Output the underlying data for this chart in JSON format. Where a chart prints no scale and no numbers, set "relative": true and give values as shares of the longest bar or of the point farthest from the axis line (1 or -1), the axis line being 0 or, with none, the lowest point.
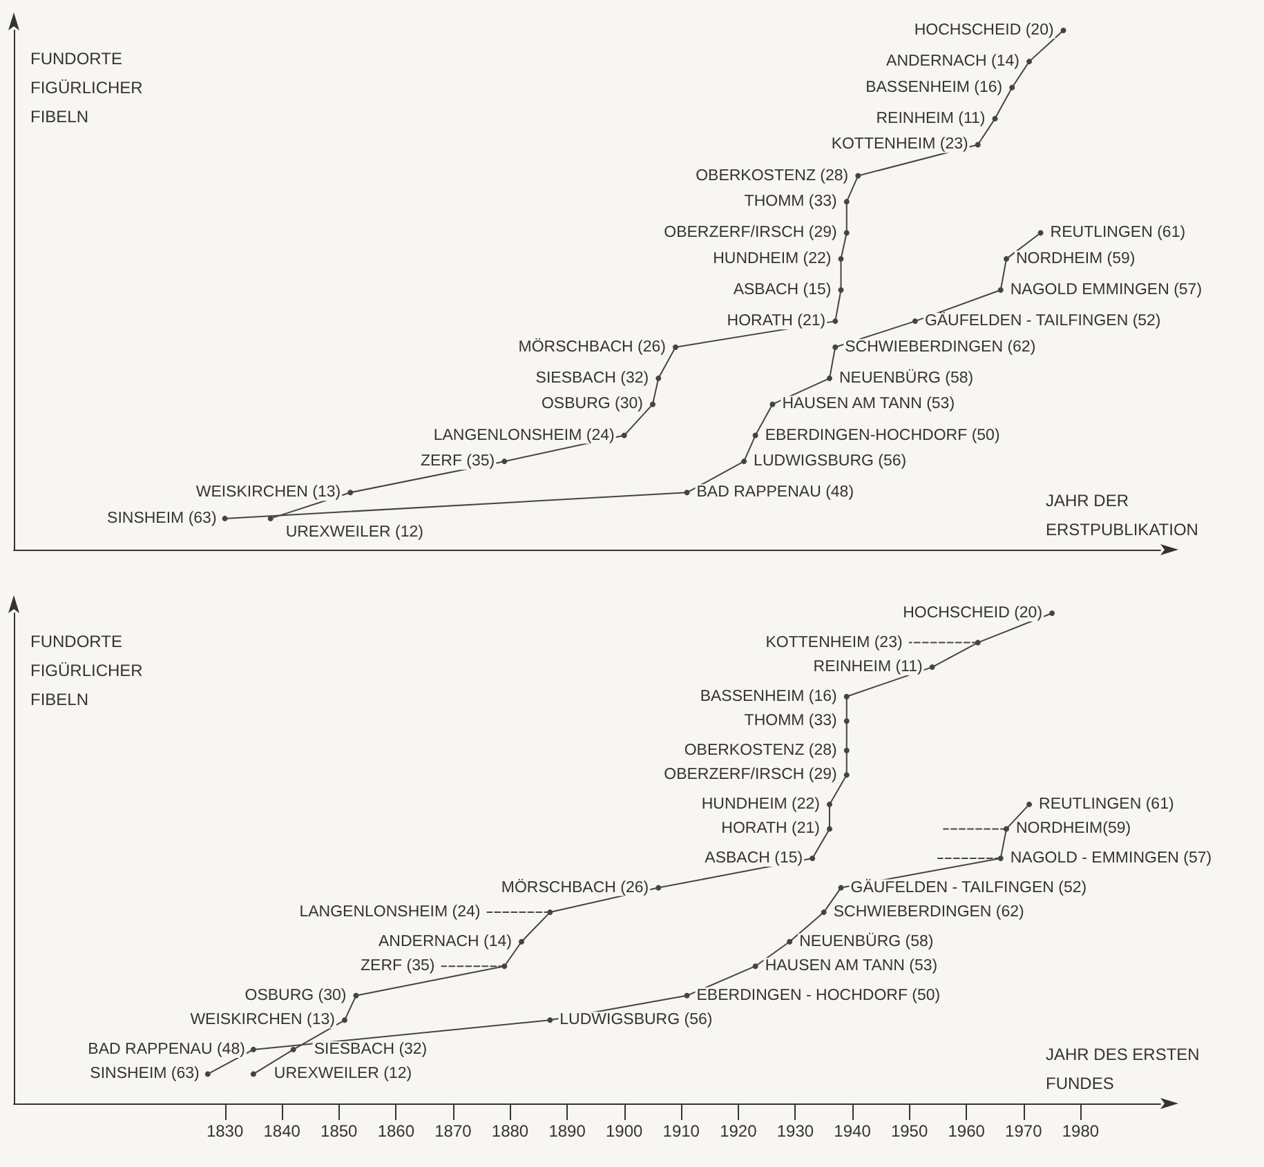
{
  "chart_data": [
    {
      "type": "line",
      "relative": true,
      "xlabel": "JAHR DER ERSTPUBLIKATION",
      "ylabel": "FUNDORTE FIGÜRLICHER FIBELN",
      "xlim": [
        1793,
        1994
      ],
      "tick_labels": false,
      "grid": false,
      "marker": "circle",
      "line_style": "solid",
      "series": [
        {
          "color": "#444444",
          "x": [
            1838,
            1852,
            1879,
            1900,
            1905,
            1906,
            1909,
            1937,
            1938,
            1938,
            1939,
            1939,
            1941,
            1962,
            1965,
            1968,
            1971,
            1977
          ],
          "values": [
            0.06,
            0.11,
            0.17,
            0.22,
            0.28,
            0.33,
            0.39,
            0.44,
            0.5,
            0.56,
            0.61,
            0.67,
            0.72,
            0.78,
            0.83,
            0.89,
            0.94,
            1
          ]
        },
        {
          "color": "#444444",
          "x": [
            1830,
            1911,
            1921,
            1923,
            1926,
            1936,
            1937,
            1951,
            1966,
            1967,
            1973
          ],
          "values": [
            0.06,
            0.11,
            0.17,
            0.22,
            0.28,
            0.33,
            0.39,
            0.44,
            0.5,
            0.56,
            0.61
          ]
        }
      ],
      "annotations": [
        {
          "text": "UREXWEILER (12)",
          "x": 1838,
          "y": 0.06
        },
        {
          "text": "WEISKIRCHEN (13)",
          "x": 1852,
          "y": 0.11
        },
        {
          "text": "ZERF (35)",
          "x": 1879,
          "y": 0.17
        },
        {
          "text": "LANGENLONSHEIM (24)",
          "x": 1900,
          "y": 0.22
        },
        {
          "text": "OSBURG (30)",
          "x": 1905,
          "y": 0.28
        },
        {
          "text": "SIESBACH (32)",
          "x": 1906,
          "y": 0.33
        },
        {
          "text": "MÖRSCHBACH (26)",
          "x": 1909,
          "y": 0.39
        },
        {
          "text": "HORATH (21)",
          "x": 1937,
          "y": 0.44
        },
        {
          "text": "ASBACH (15)",
          "x": 1938,
          "y": 0.5
        },
        {
          "text": "HUNDHEIM (22)",
          "x": 1938,
          "y": 0.56
        },
        {
          "text": "OBERZERF/IRSCH (29)",
          "x": 1939,
          "y": 0.61
        },
        {
          "text": "THOMM (33)",
          "x": 1939,
          "y": 0.67
        },
        {
          "text": "OBERKOSTENZ (28)",
          "x": 1941,
          "y": 0.72
        },
        {
          "text": "KOTTENHEIM (23)",
          "x": 1962,
          "y": 0.78
        },
        {
          "text": "REINHEIM (11)",
          "x": 1965,
          "y": 0.83
        },
        {
          "text": "BASSENHEIM (16)",
          "x": 1968,
          "y": 0.89
        },
        {
          "text": "ANDERNACH (14)",
          "x": 1971,
          "y": 0.94
        },
        {
          "text": "HOCHSCHEID (20)",
          "x": 1977,
          "y": 1
        },
        {
          "text": "SINSHEIM (63)",
          "x": 1830,
          "y": 0.06
        },
        {
          "text": "BAD RAPPENAU (48)",
          "x": 1911,
          "y": 0.11
        },
        {
          "text": "LUDWIGSBURG (56)",
          "x": 1921,
          "y": 0.17
        },
        {
          "text": "EBERDINGEN-HOCHDORF (50)",
          "x": 1923,
          "y": 0.22
        },
        {
          "text": "HAUSEN AM TANN (53)",
          "x": 1926,
          "y": 0.28
        },
        {
          "text": "NEUENBÜRG (58)",
          "x": 1936,
          "y": 0.33
        },
        {
          "text": "SCHWIEBERDINGEN (62)",
          "x": 1937,
          "y": 0.39
        },
        {
          "text": "GÄUFELDEN - TAILFINGEN (52)",
          "x": 1951,
          "y": 0.44
        },
        {
          "text": "NAGOLD EMMINGEN (57)",
          "x": 1966,
          "y": 0.5
        },
        {
          "text": "NORDHEIM (59)",
          "x": 1967,
          "y": 0.56
        },
        {
          "text": "REUTLINGEN (61)",
          "x": 1973,
          "y": 0.61
        }
      ]
    },
    {
      "type": "line",
      "relative": true,
      "xlabel": "JAHR DES ERSTEN FUNDES",
      "ylabel": "FUNDORTE FIGÜRLICHER FIBELN",
      "xlim": [
        1793,
        1994
      ],
      "xticks": [
        1830,
        1840,
        1850,
        1860,
        1870,
        1880,
        1890,
        1900,
        1910,
        1920,
        1930,
        1940,
        1950,
        1960,
        1970,
        1980
      ],
      "tick_labels": "x",
      "grid": false,
      "marker": "circle",
      "line_style": "solid",
      "series": [
        {
          "color": "#444444",
          "x": [
            1835,
            1842,
            1851,
            1853,
            1879,
            1882,
            1887,
            1906,
            1933,
            1936,
            1936,
            1939,
            1939,
            1939,
            1939,
            1954,
            1962,
            1975
          ],
          "values": [
            0.06,
            0.11,
            0.17,
            0.22,
            0.28,
            0.33,
            0.39,
            0.44,
            0.5,
            0.56,
            0.61,
            0.67,
            0.72,
            0.78,
            0.83,
            0.89,
            0.94,
            1
          ]
        },
        {
          "color": "#444444",
          "x": [
            1827,
            1835,
            1887,
            1911,
            1923,
            1929,
            1935,
            1938,
            1966,
            1967,
            1971
          ],
          "values": [
            0.06,
            0.11,
            0.17,
            0.22,
            0.28,
            0.33,
            0.39,
            0.44,
            0.5,
            0.56,
            0.61
          ]
        },
        {
          "color": "#444444",
          "line_style": "dashed",
          "marker": "none",
          "x": [
            1887,
            1876
          ],
          "values": [
            0.39,
            0.39
          ]
        },
        {
          "color": "#444444",
          "line_style": "dashed",
          "marker": "none",
          "x": [
            1879,
            1868
          ],
          "values": [
            0.28,
            0.28
          ]
        },
        {
          "color": "#444444",
          "line_style": "dashed",
          "marker": "none",
          "x": [
            1962,
            1950
          ],
          "values": [
            0.94,
            0.94
          ]
        },
        {
          "color": "#444444",
          "line_style": "dashed",
          "marker": "none",
          "x": [
            1967,
            1956
          ],
          "values": [
            0.56,
            0.56
          ]
        },
        {
          "color": "#444444",
          "line_style": "dashed",
          "marker": "none",
          "x": [
            1966,
            1955
          ],
          "values": [
            0.5,
            0.5
          ]
        }
      ],
      "annotations": [
        {
          "text": "UREXWEILER (12)",
          "x": 1835,
          "y": 0.06
        },
        {
          "text": "SIESBACH (32)",
          "x": 1842,
          "y": 0.11
        },
        {
          "text": "WEISKIRCHEN (13)",
          "x": 1851,
          "y": 0.17
        },
        {
          "text": "OSBURG (30)",
          "x": 1853,
          "y": 0.22
        },
        {
          "text": "ZERF (35)",
          "x": 1868,
          "y": 0.28
        },
        {
          "text": "ANDERNACH (14)",
          "x": 1882,
          "y": 0.33
        },
        {
          "text": "LANGENLONSHEIM (24)",
          "x": 1876,
          "y": 0.39
        },
        {
          "text": "MÖRSCHBACH (26)",
          "x": 1906,
          "y": 0.44
        },
        {
          "text": "ASBACH (15)",
          "x": 1933,
          "y": 0.5
        },
        {
          "text": "HORATH (21)",
          "x": 1936,
          "y": 0.56
        },
        {
          "text": "HUNDHEIM (22)",
          "x": 1936,
          "y": 0.61
        },
        {
          "text": "OBERZERF/IRSCH (29)",
          "x": 1939,
          "y": 0.67
        },
        {
          "text": "OBERKOSTENZ (28)",
          "x": 1939,
          "y": 0.72
        },
        {
          "text": "THOMM (33)",
          "x": 1939,
          "y": 0.78
        },
        {
          "text": "BASSENHEIM (16)",
          "x": 1939,
          "y": 0.83
        },
        {
          "text": "REINHEIM (11)",
          "x": 1954,
          "y": 0.89
        },
        {
          "text": "KOTTENHEIM (23)",
          "x": 1950,
          "y": 0.94
        },
        {
          "text": "HOCHSCHEID (20)",
          "x": 1975,
          "y": 1
        },
        {
          "text": "SINSHEIM (63)",
          "x": 1827,
          "y": 0.06
        },
        {
          "text": "BAD RAPPENAU (48)",
          "x": 1835,
          "y": 0.11
        },
        {
          "text": "LUDWIGSBURG (56)",
          "x": 1887,
          "y": 0.17
        },
        {
          "text": "EBERDINGEN - HOCHDORF (50)",
          "x": 1911,
          "y": 0.22
        },
        {
          "text": "HAUSEN AM TANN (53)",
          "x": 1923,
          "y": 0.28
        },
        {
          "text": "NEUENBÜRG (58)",
          "x": 1929,
          "y": 0.33
        },
        {
          "text": "SCHWIEBERDINGEN (62)",
          "x": 1935,
          "y": 0.39
        },
        {
          "text": "GÄUFELDEN - TAILFINGEN (52)",
          "x": 1938,
          "y": 0.44
        },
        {
          "text": "NAGOLD - EMMINGEN (57)",
          "x": 1966,
          "y": 0.5
        },
        {
          "text": "NORDHEIM(59)",
          "x": 1967,
          "y": 0.56
        },
        {
          "text": "REUTLINGEN (61)",
          "x": 1971,
          "y": 0.61
        }
      ]
    }
  ]
}
